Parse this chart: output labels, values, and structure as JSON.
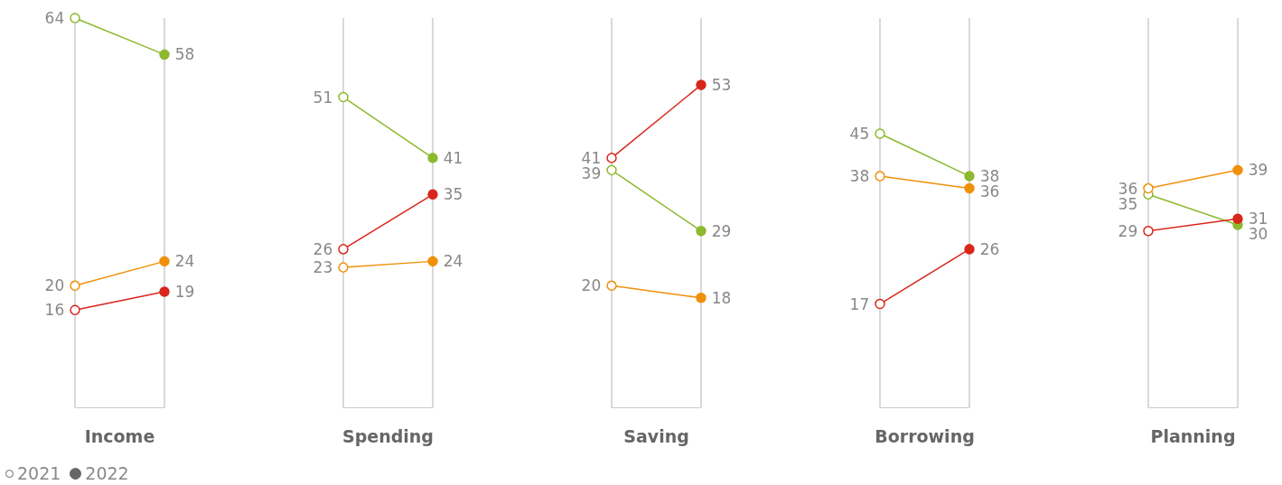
{
  "chart_data": [
    {
      "type": "line",
      "xlabel": "Income",
      "categories": [
        null,
        null
      ],
      "ylim": [
        0,
        64
      ],
      "marker": "circle",
      "data_labels": true,
      "annotations": [
        "2021",
        "2022"
      ],
      "series": [
        {
          "color": "#8db92e",
          "values": [
            64,
            58
          ]
        },
        {
          "color": "#f0900a",
          "values": [
            20,
            24
          ]
        },
        {
          "color": "#d9261c",
          "values": [
            16,
            19
          ]
        }
      ]
    },
    {
      "type": "line",
      "xlabel": "Spending",
      "categories": [
        null,
        null
      ],
      "ylim": [
        0,
        64
      ],
      "marker": "circle",
      "data_labels": true,
      "series": [
        {
          "color": "#8db92e",
          "values": [
            51,
            41
          ]
        },
        {
          "color": "#f0900a",
          "values": [
            23,
            24
          ]
        },
        {
          "color": "#d9261c",
          "values": [
            26,
            35
          ]
        }
      ]
    },
    {
      "type": "line",
      "xlabel": "Saving",
      "categories": [
        null,
        null
      ],
      "ylim": [
        0,
        64
      ],
      "marker": "circle",
      "data_labels": true,
      "series": [
        {
          "color": "#8db92e",
          "values": [
            39,
            29
          ]
        },
        {
          "color": "#f0900a",
          "values": [
            20,
            18
          ]
        },
        {
          "color": "#d9261c",
          "values": [
            41,
            53
          ]
        }
      ]
    },
    {
      "type": "line",
      "xlabel": "Borrowing",
      "categories": [
        null,
        null
      ],
      "ylim": [
        0,
        64
      ],
      "marker": "circle",
      "data_labels": true,
      "series": [
        {
          "color": "#8db92e",
          "values": [
            45,
            38
          ]
        },
        {
          "color": "#f0900a",
          "values": [
            38,
            36
          ]
        },
        {
          "color": "#d9261c",
          "values": [
            17,
            26
          ]
        }
      ]
    },
    {
      "type": "line",
      "xlabel": "Planning",
      "categories": [
        null,
        null
      ],
      "ylim": [
        0,
        64
      ],
      "marker": "circle",
      "data_labels": true,
      "series": [
        {
          "color": "#8db92e",
          "values": [
            35,
            30
          ]
        },
        {
          "color": "#f0900a",
          "values": [
            36,
            39
          ]
        },
        {
          "color": "#d9261c",
          "values": [
            29,
            31
          ]
        }
      ]
    }
  ]
}
